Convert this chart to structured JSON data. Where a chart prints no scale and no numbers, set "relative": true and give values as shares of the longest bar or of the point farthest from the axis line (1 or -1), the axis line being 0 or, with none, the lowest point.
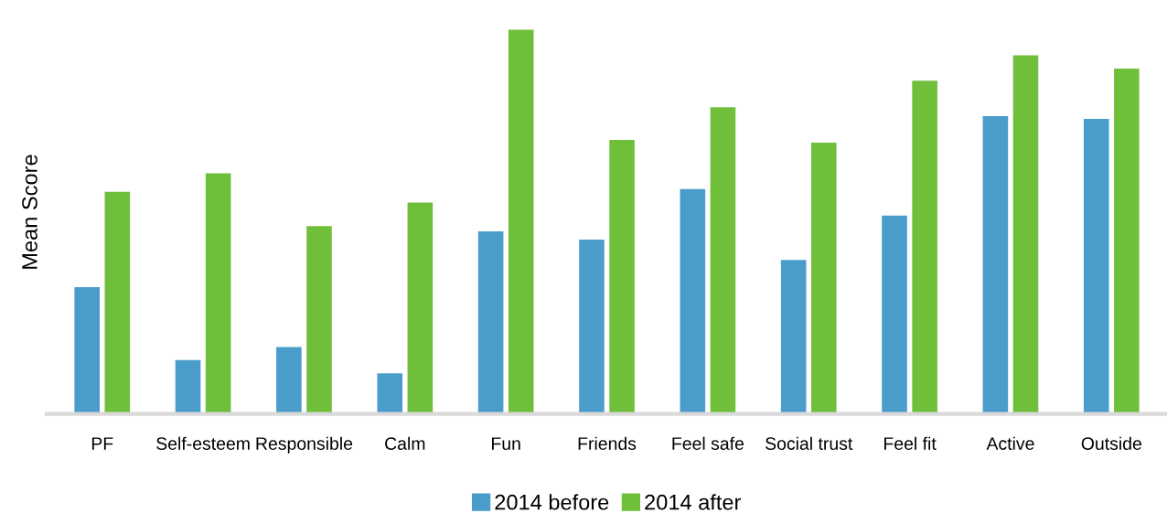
{
  "chart_data": {
    "type": "bar",
    "ylabel": "Mean Score",
    "relative": true,
    "legend": "bottom",
    "categories": [
      "PF",
      "Self-esteem",
      "Responsible",
      "Calm",
      "Fun",
      "Friends",
      "Feel safe",
      "Social trust",
      "Feel fit",
      "Active",
      "Outside"
    ],
    "series": [
      {
        "name": "2014 before",
        "color": "#4a9ccb",
        "values": [
          0.33,
          0.14,
          0.174,
          0.106,
          0.475,
          0.454,
          0.585,
          0.401,
          0.516,
          0.775,
          0.768
        ]
      },
      {
        "name": "2014 after",
        "color": "#6fbf3a",
        "values": [
          0.578,
          0.626,
          0.489,
          0.55,
          1.0,
          0.713,
          0.798,
          0.706,
          0.867,
          0.933,
          0.899
        ]
      }
    ]
  }
}
